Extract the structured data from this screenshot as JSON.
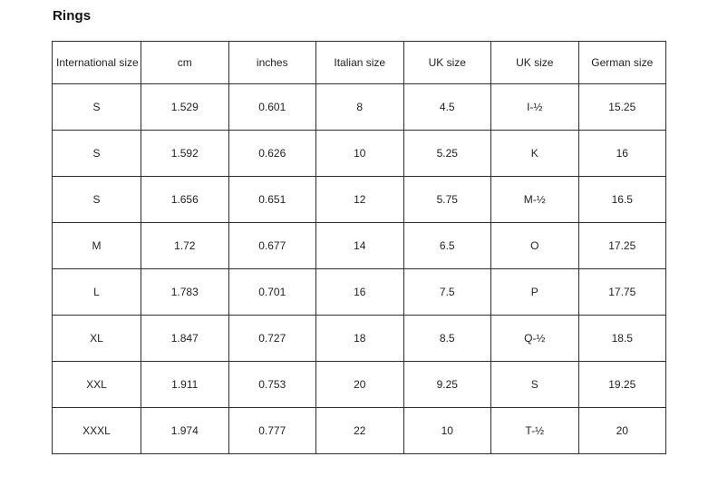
{
  "page": {
    "title": "Rings"
  },
  "table": {
    "columns": [
      "International size",
      "cm",
      "inches",
      "Italian size",
      "UK size",
      "UK size",
      "German size"
    ],
    "rows": [
      [
        "S",
        "1.529",
        "0.601",
        "8",
        "4.5",
        "I-½",
        "15.25"
      ],
      [
        "S",
        "1.592",
        "0.626",
        "10",
        "5.25",
        "K",
        "16"
      ],
      [
        "S",
        "1.656",
        "0.651",
        "12",
        "5.75",
        "M-½",
        "16.5"
      ],
      [
        "M",
        "1.72",
        "0.677",
        "14",
        "6.5",
        "O",
        "17.25"
      ],
      [
        "L",
        "1.783",
        "0.701",
        "16",
        "7.5",
        "P",
        "17.75"
      ],
      [
        "XL",
        "1.847",
        "0.727",
        "18",
        "8.5",
        "Q-½",
        "18.5"
      ],
      [
        "XXL",
        "1.911",
        "0.753",
        "20",
        "9.25",
        "S",
        "19.25"
      ],
      [
        "XXXL",
        "1.974",
        "0.777",
        "22",
        "10",
        "T-½",
        "20"
      ]
    ]
  },
  "colors": {
    "border": "#2f2f2f",
    "text": "#1f1f1f",
    "title": "#111111",
    "background": "#ffffff"
  }
}
